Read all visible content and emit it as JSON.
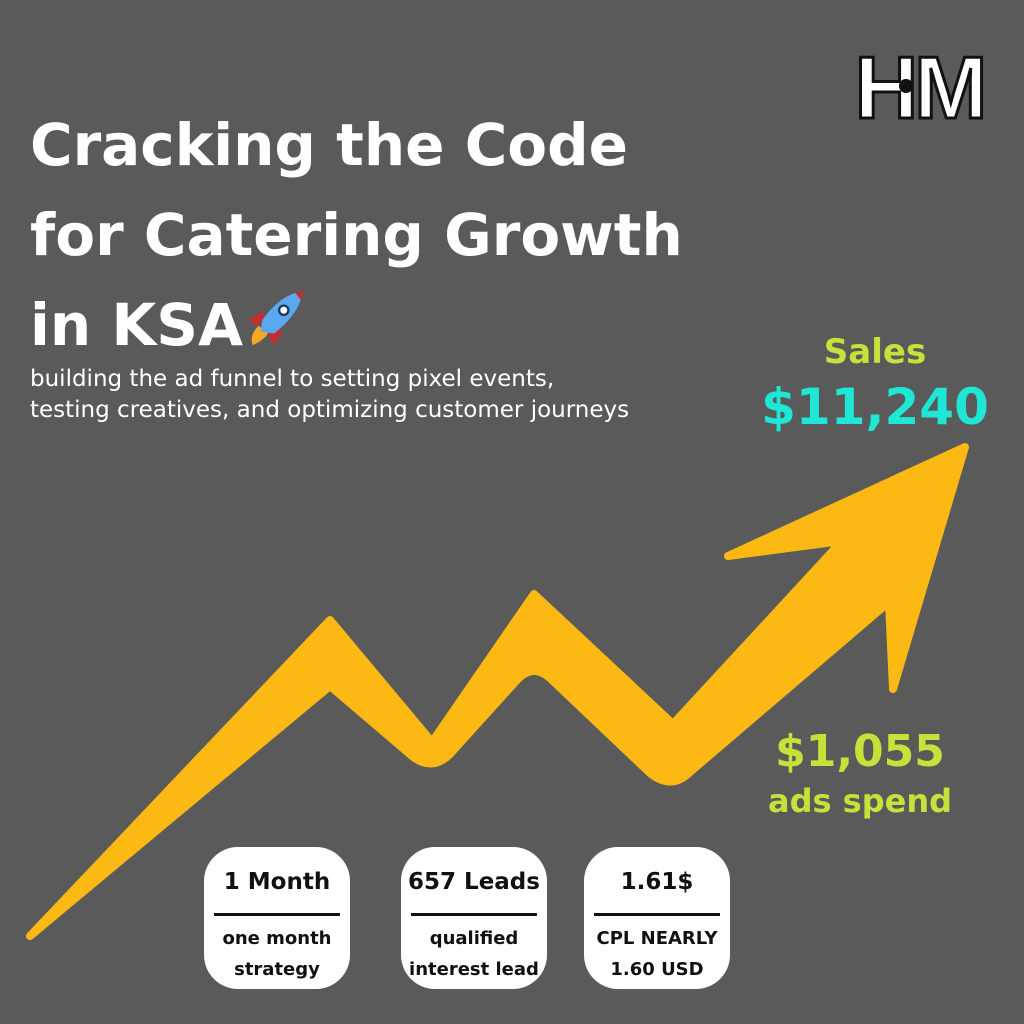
{
  "title_lines": [
    "Cracking the Code",
    "for Catering Growth",
    "in KSA"
  ],
  "subtitle_lines": [
    "building the ad funnel to setting pixel events,",
    "testing creatives, and optimizing customer journeys"
  ],
  "logo": {
    "text": "HM"
  },
  "sales": {
    "label": "Sales",
    "value": "$11,240"
  },
  "spend": {
    "value": "$1,055",
    "label": "ads spend"
  },
  "cards": [
    {
      "head": "1 Month",
      "sub_lines": [
        "one month",
        "strategy"
      ]
    },
    {
      "head": "657 Leads",
      "sub_lines": [
        "qualified",
        "interest lead"
      ]
    },
    {
      "head": "1.61$",
      "sub_lines": [
        "CPL NEARLY",
        "1.60 USD"
      ]
    }
  ],
  "colors": {
    "background": "#5a5a5a",
    "arrow": "#fdb913",
    "sales_label": "#c6e23a",
    "sales_value": "#1ee8d5",
    "spend": "#c6e23a"
  },
  "icons": [
    "rocket-icon",
    "trend-arrow-icon"
  ]
}
